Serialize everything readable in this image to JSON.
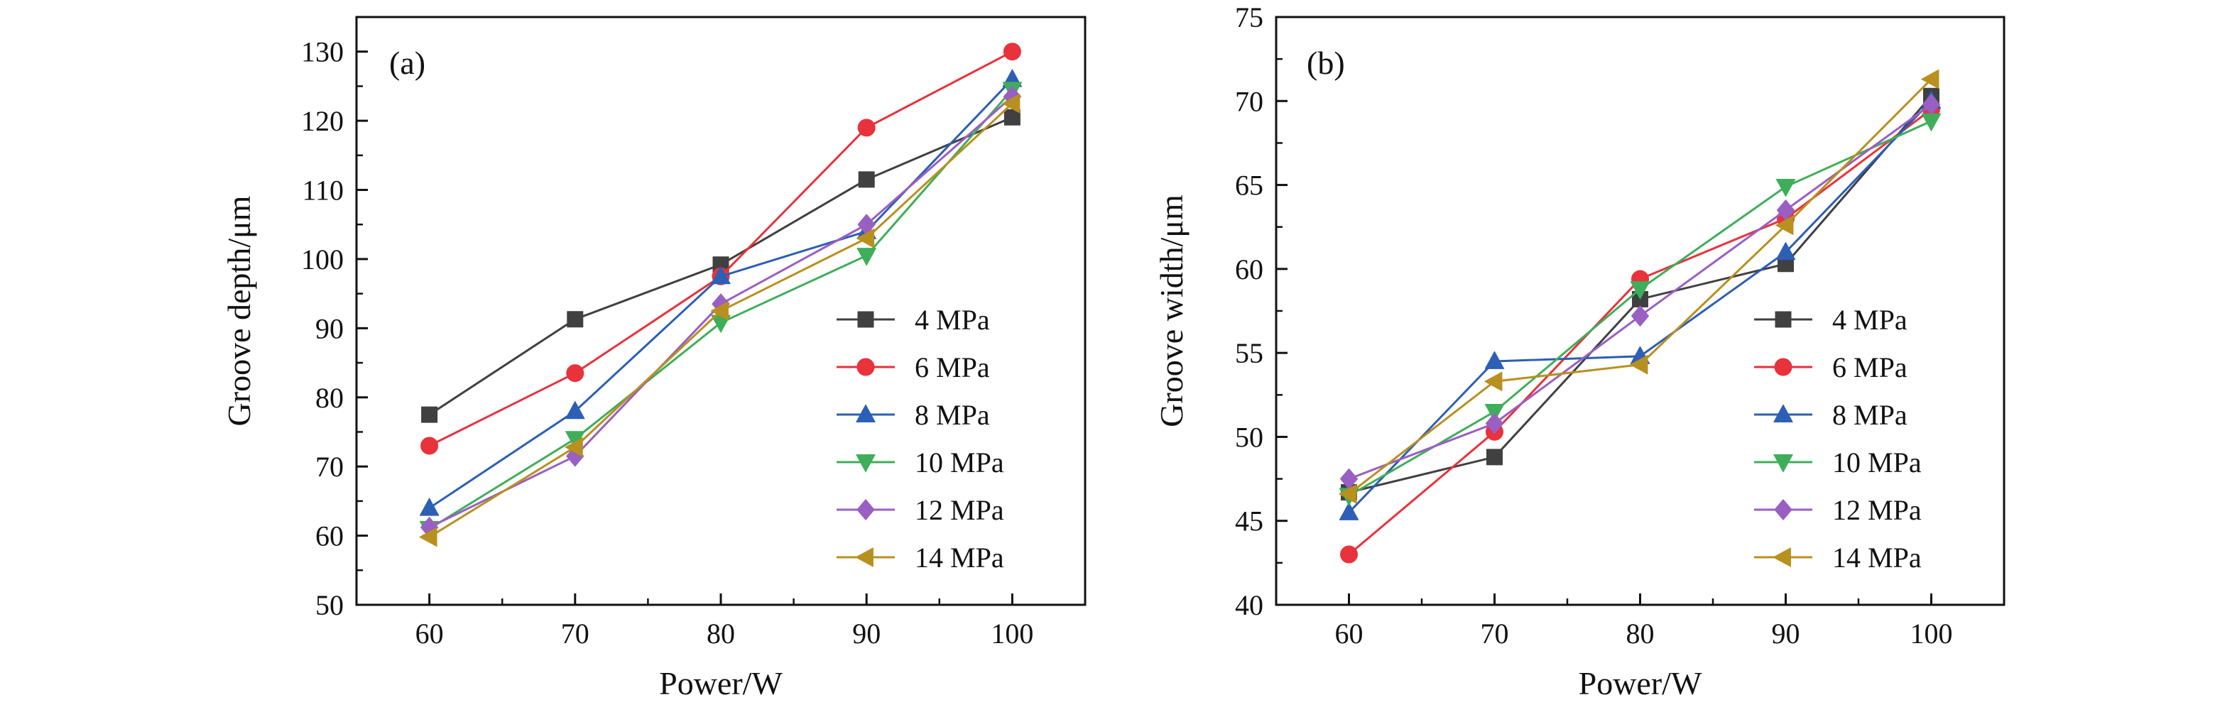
{
  "chart_data": [
    {
      "type": "line",
      "panel_label": "(a)",
      "xlabel": "Power/W",
      "ylabel": "Groove depth/μm",
      "x": [
        60,
        70,
        80,
        90,
        100
      ],
      "xlim": [
        55,
        105
      ],
      "ylim": [
        50,
        135
      ],
      "xticks": [
        60,
        70,
        80,
        90,
        100
      ],
      "yticks": [
        50,
        60,
        70,
        80,
        90,
        100,
        110,
        120,
        130
      ],
      "grid": false,
      "legend_position": "bottom-right",
      "series": [
        {
          "name": "4 MPa",
          "color": "#404040",
          "marker": "square",
          "values": [
            77.5,
            91.3,
            99.2,
            111.5,
            120.5
          ]
        },
        {
          "name": "6 MPa",
          "color": "#e8323c",
          "marker": "circle",
          "values": [
            73.0,
            83.5,
            97.5,
            119.0,
            130.0
          ]
        },
        {
          "name": "8 MPa",
          "color": "#2c5fb5",
          "marker": "triangle-up",
          "values": [
            64.0,
            78.0,
            97.5,
            104.0,
            126.0
          ]
        },
        {
          "name": "10 MPa",
          "color": "#3fae5a",
          "marker": "triangle-down",
          "values": [
            61.0,
            74.0,
            90.8,
            100.5,
            124.5
          ]
        },
        {
          "name": "12 MPa",
          "color": "#9a5fc2",
          "marker": "diamond",
          "values": [
            61.2,
            71.5,
            93.5,
            105.0,
            123.5
          ]
        },
        {
          "name": "14 MPa",
          "color": "#b8901f",
          "marker": "triangle-left",
          "values": [
            59.8,
            72.8,
            92.5,
            103.0,
            122.5
          ]
        }
      ]
    },
    {
      "type": "line",
      "panel_label": "(b)",
      "xlabel": "Power/W",
      "ylabel": "Groove width/μm",
      "x": [
        60,
        70,
        80,
        90,
        100
      ],
      "xlim": [
        55,
        105
      ],
      "ylim": [
        40,
        75
      ],
      "xticks": [
        60,
        70,
        80,
        90,
        100
      ],
      "yticks": [
        40,
        45,
        50,
        55,
        60,
        65,
        70,
        75
      ],
      "grid": false,
      "legend_position": "bottom-right",
      "series": [
        {
          "name": "4 MPa",
          "color": "#404040",
          "marker": "square",
          "values": [
            46.7,
            48.8,
            58.2,
            60.3,
            70.3
          ]
        },
        {
          "name": "6 MPa",
          "color": "#e8323c",
          "marker": "circle",
          "values": [
            43.0,
            50.3,
            59.4,
            63.0,
            69.5
          ]
        },
        {
          "name": "8 MPa",
          "color": "#2c5fb5",
          "marker": "triangle-up",
          "values": [
            45.5,
            54.5,
            54.8,
            61.0,
            70.0
          ]
        },
        {
          "name": "10 MPa",
          "color": "#3fae5a",
          "marker": "triangle-down",
          "values": [
            46.5,
            51.5,
            58.8,
            64.9,
            68.8
          ]
        },
        {
          "name": "12 MPa",
          "color": "#9a5fc2",
          "marker": "diamond",
          "values": [
            47.5,
            50.8,
            57.2,
            63.5,
            69.8
          ]
        },
        {
          "name": "14 MPa",
          "color": "#b8901f",
          "marker": "triangle-left",
          "values": [
            46.6,
            53.3,
            54.3,
            62.6,
            71.3
          ]
        }
      ]
    }
  ]
}
